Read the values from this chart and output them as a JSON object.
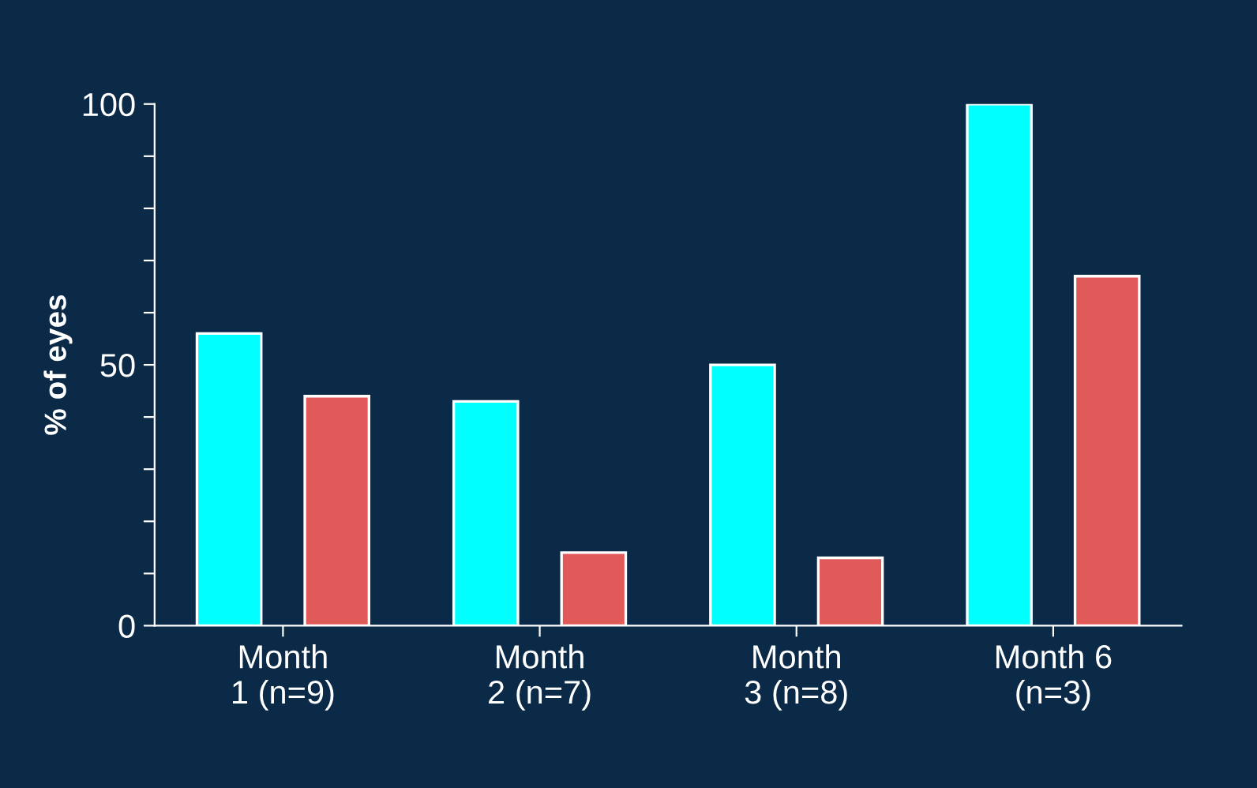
{
  "chart_data": {
    "type": "bar",
    "ylabel": "% of eyes",
    "categories": [
      "Month\n1 (n=9)",
      "Month\n2 (n=7)",
      "Month\n3 (n=8)",
      "Month 6\n(n=3)"
    ],
    "series": [
      {
        "color": "#00ffff",
        "values": [
          56,
          43,
          50,
          100
        ]
      },
      {
        "color": "#e05a5a",
        "values": [
          44,
          14,
          13,
          67
        ]
      }
    ],
    "ylim": [
      0,
      100
    ],
    "yticks": [
      0,
      {
        "value": 10,
        "label": null
      },
      {
        "value": 20,
        "label": null
      },
      {
        "value": 30,
        "label": null
      },
      {
        "value": 40,
        "label": null
      },
      50,
      {
        "value": 60,
        "label": null
      },
      {
        "value": 70,
        "label": null
      },
      {
        "value": 80,
        "label": null
      },
      {
        "value": 90,
        "label": null
      },
      100
    ],
    "grid": false,
    "legend": false
  }
}
